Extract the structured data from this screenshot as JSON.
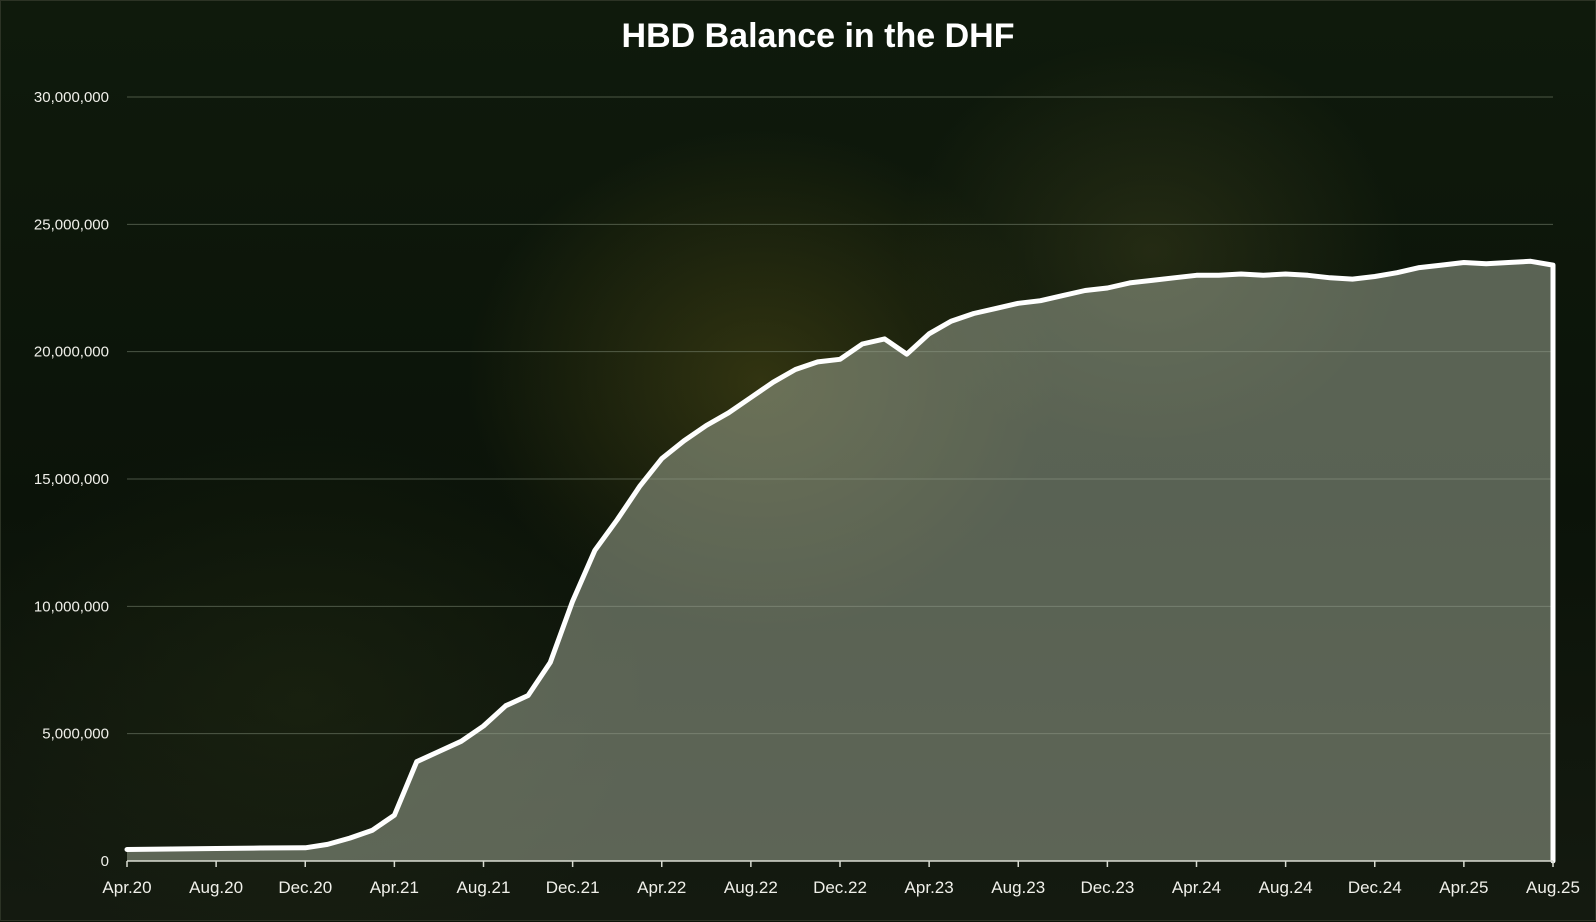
{
  "chart_data": {
    "type": "area",
    "title": "HBD Balance in the DHF",
    "xlabel": "",
    "ylabel": "",
    "ylim": [
      0,
      30000000
    ],
    "grid": true,
    "legend": "none",
    "y_ticks": [
      "0",
      "5,000,000",
      "10,000,000",
      "15,000,000",
      "20,000,000",
      "25,000,000",
      "30,000,000"
    ],
    "y_tick_values": [
      0,
      5000000,
      10000000,
      15000000,
      20000000,
      25000000,
      30000000
    ],
    "x_ticks": [
      "Apr.20",
      "Aug.20",
      "Dec.20",
      "Apr.21",
      "Aug.21",
      "Dec.21",
      "Apr.22",
      "Aug.22",
      "Dec.22",
      "Apr.23",
      "Aug.23",
      "Dec.23",
      "Apr.24",
      "Aug.24",
      "Dec.24",
      "Apr.25",
      "Aug.25"
    ],
    "x_range": [
      "2020-04",
      "2025-08"
    ],
    "series": [
      {
        "values_date": [
          "2020-04",
          "2020-06",
          "2020-08",
          "2020-10",
          "2020-12",
          "2021-01",
          "2021-02",
          "2021-03",
          "2021-04",
          "2021-05",
          "2021-06",
          "2021-07",
          "2021-08",
          "2021-09",
          "2021-10",
          "2021-11",
          "2021-12",
          "2022-01",
          "2022-02",
          "2022-03",
          "2022-04",
          "2022-05",
          "2022-06",
          "2022-07",
          "2022-08",
          "2022-09",
          "2022-10",
          "2022-11",
          "2022-12",
          "2023-01",
          "2023-02",
          "2023-03",
          "2023-04",
          "2023-05",
          "2023-06",
          "2023-07",
          "2023-08",
          "2023-09",
          "2023-10",
          "2023-11",
          "2023-12",
          "2024-01",
          "2024-02",
          "2024-03",
          "2024-04",
          "2024-05",
          "2024-06",
          "2024-07",
          "2024-08",
          "2024-09",
          "2024-10",
          "2024-11",
          "2024-12",
          "2025-01",
          "2025-02",
          "2025-03",
          "2025-04",
          "2025-05",
          "2025-06",
          "2025-07",
          "2025-08"
        ],
        "values": [
          450000,
          470000,
          490000,
          510000,
          520000,
          650000,
          900000,
          1200000,
          1800000,
          3900000,
          4300000,
          4700000,
          5300000,
          6100000,
          6500000,
          7800000,
          10200000,
          12200000,
          13400000,
          14700000,
          15800000,
          16500000,
          17100000,
          17600000,
          18200000,
          18800000,
          19300000,
          19600000,
          19700000,
          20300000,
          20500000,
          19900000,
          20700000,
          21200000,
          21500000,
          21700000,
          21900000,
          22000000,
          22200000,
          22400000,
          22500000,
          22700000,
          22800000,
          22900000,
          23000000,
          23000000,
          23050000,
          23000000,
          23050000,
          23000000,
          22900000,
          22850000,
          22950000,
          23100000,
          23300000,
          23400000,
          23500000,
          23450000,
          23500000,
          23550000,
          23400000
        ]
      }
    ],
    "colors": {
      "line": "#ffffff",
      "fill": "#9aa491",
      "grid": "#7e8a76",
      "text": "#f0f0ea",
      "background": "#0c1409"
    }
  }
}
